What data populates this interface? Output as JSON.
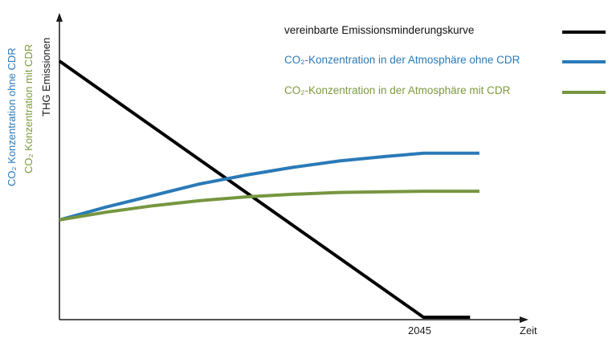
{
  "chart_data": {
    "type": "line",
    "xlabel": "Zeit",
    "ylabels": {
      "emissions": "THG Emissionen",
      "co2_without_cdr": "CO₂ Konzentration ohne CDR",
      "co2_with_cdr": "CO₂ Konzentration mit CDR"
    },
    "x_tick_labels": [
      "2045"
    ],
    "legend_position": "top-right",
    "grid": false,
    "xlim": [
      0,
      1
    ],
    "ylim": [
      0,
      1
    ],
    "series": [
      {
        "name": "vereinbarte Emissionsminderungskurve",
        "color": "#000000",
        "x": [
          0,
          0.78,
          0.88
        ],
        "y": [
          1.0,
          0.0,
          0.0
        ]
      },
      {
        "name": "CO₂-Konzentration in der Atmosphäre ohne CDR",
        "color": "#2a7ab8",
        "x": [
          0,
          0.1,
          0.2,
          0.3,
          0.4,
          0.5,
          0.6,
          0.7,
          0.78,
          0.9
        ],
        "y": [
          0.38,
          0.43,
          0.475,
          0.52,
          0.555,
          0.585,
          0.61,
          0.628,
          0.64,
          0.64
        ]
      },
      {
        "name": "CO₂-Konzentration in der Atmosphäre mit CDR",
        "color": "#76963f",
        "x": [
          0,
          0.1,
          0.2,
          0.3,
          0.4,
          0.5,
          0.6,
          0.7,
          0.78,
          0.9
        ],
        "y": [
          0.38,
          0.41,
          0.435,
          0.455,
          0.47,
          0.48,
          0.487,
          0.49,
          0.492,
          0.492
        ]
      }
    ]
  }
}
